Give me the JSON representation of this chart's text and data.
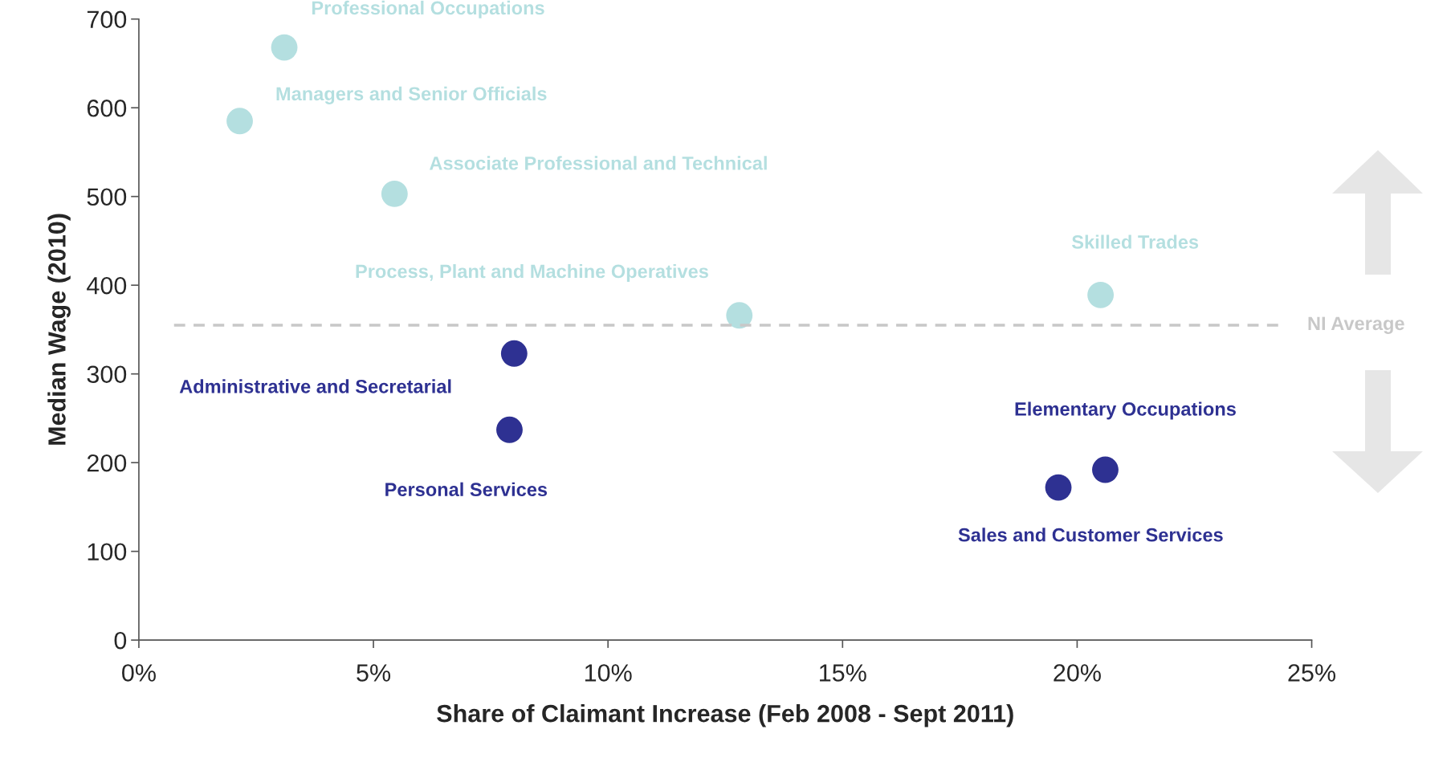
{
  "chart_data": {
    "type": "scatter",
    "xlabel": "Share of Claimant Increase (Feb 2008 - Sept 2011)",
    "ylabel": "Median Wage (2010)",
    "xlim": [
      0,
      25
    ],
    "xticks": [
      {
        "value": 0,
        "label": "0%"
      },
      {
        "value": 5,
        "label": "5%"
      },
      {
        "value": 10,
        "label": "10%"
      },
      {
        "value": 15,
        "label": "15%"
      },
      {
        "value": 20,
        "label": "20%"
      },
      {
        "value": 25,
        "label": "25%"
      }
    ],
    "ylim": [
      0,
      700
    ],
    "yticks": [
      0,
      100,
      200,
      300,
      400,
      500,
      600,
      700
    ],
    "grid": false,
    "legend": false,
    "marker": "circle",
    "ref_lines": [
      {
        "axis": "y",
        "value": 355,
        "label": "NI Average",
        "color": "#c8c8c8",
        "line_style": "dashed"
      }
    ],
    "series": [
      {
        "name": "Professional Occupations",
        "color": "#b4dfe0",
        "x": [
          3.1
        ],
        "values": [
          668
        ]
      },
      {
        "name": "Managers and Senior Officials",
        "color": "#b4dfe0",
        "x": [
          2.15
        ],
        "values": [
          585
        ]
      },
      {
        "name": "Associate Professional and Technical",
        "color": "#b4dfe0",
        "x": [
          5.45
        ],
        "values": [
          503
        ]
      },
      {
        "name": "Process, Plant and Machine Operatives",
        "color": "#b4dfe0",
        "x": [
          12.8
        ],
        "values": [
          366
        ]
      },
      {
        "name": "Skilled Trades",
        "color": "#b4dfe0",
        "x": [
          20.5
        ],
        "values": [
          389
        ]
      },
      {
        "name": "Administrative and Secretarial",
        "color": "#2e3192",
        "x": [
          8.0
        ],
        "values": [
          323
        ]
      },
      {
        "name": "Personal Services",
        "color": "#2e3192",
        "x": [
          7.9
        ],
        "values": [
          237
        ]
      },
      {
        "name": "Elementary Occupations",
        "color": "#2e3192",
        "x": [
          20.6
        ],
        "values": [
          192
        ]
      },
      {
        "name": "Sales and Customer Services",
        "color": "#2e3192",
        "x": [
          19.6
        ],
        "values": [
          172
        ]
      }
    ]
  }
}
